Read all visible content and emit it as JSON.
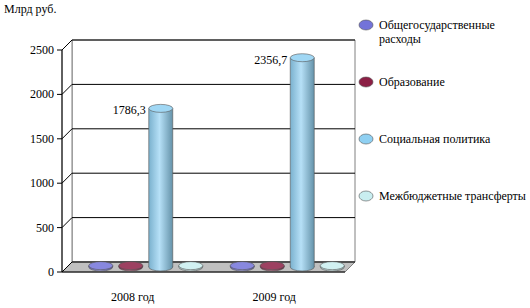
{
  "chart_data": {
    "type": "bar",
    "y_label": "Млрд руб.",
    "categories": [
      "2008 год",
      "2009 год"
    ],
    "series": [
      {
        "name": "Общегосударственные расходы",
        "color": "#7373d9",
        "values": [
          15,
          15
        ]
      },
      {
        "name": "Образование",
        "color": "#8c1f45",
        "values": [
          15,
          15
        ]
      },
      {
        "name": "Социальная политика",
        "color": "#8fd0f2",
        "values": [
          1786.3,
          2356.7
        ],
        "value_labels": [
          "1786,3",
          "2356,7"
        ],
        "data_labels": true
      },
      {
        "name": "Межбюджетные трансферты",
        "color": "#c9eef0",
        "values": [
          15,
          15
        ]
      }
    ],
    "ylim": [
      0,
      2500
    ],
    "yticks": [
      0,
      500,
      1000,
      1500,
      2000,
      2500
    ],
    "grid": true,
    "legend": "right"
  }
}
